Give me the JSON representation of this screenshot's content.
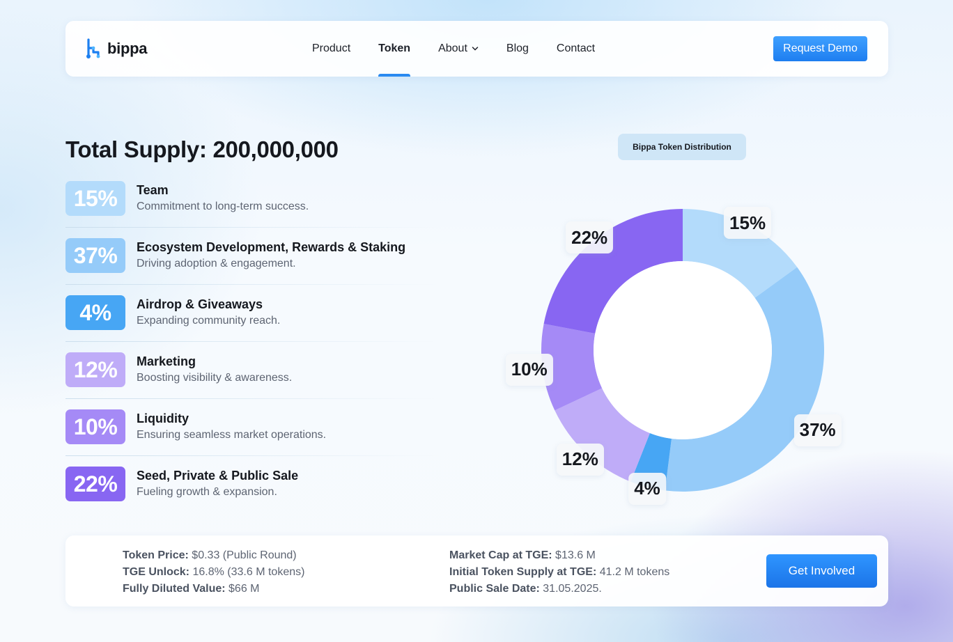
{
  "brand": {
    "name": "bippa"
  },
  "nav": {
    "items": [
      {
        "label": "Product",
        "active": false
      },
      {
        "label": "Token",
        "active": true
      },
      {
        "label": "About",
        "active": false,
        "dropdown": true
      },
      {
        "label": "Blog",
        "active": false
      },
      {
        "label": "Contact",
        "active": false
      }
    ],
    "cta": "Request Demo"
  },
  "supply": {
    "title": "Total Supply: 200,000,000"
  },
  "allocations": [
    {
      "pct": "15%",
      "name": "Team",
      "desc": "Commitment to long-term success.",
      "color": "#b3dbfb"
    },
    {
      "pct": "37%",
      "name": "Ecosystem Development, Rewards & Staking",
      "desc": "Driving adoption & engagement.",
      "color": "#95cbf9"
    },
    {
      "pct": "4%",
      "name": "Airdrop & Giveaways",
      "desc": "Expanding community reach.",
      "color": "#47a6f4"
    },
    {
      "pct": "12%",
      "name": "Marketing",
      "desc": "Boosting visibility & awareness.",
      "color": "#bfacf8"
    },
    {
      "pct": "10%",
      "name": "Liquidity",
      "desc": "Ensuring seamless market operations.",
      "color": "#a58af6"
    },
    {
      "pct": "22%",
      "name": "Seed, Private & Public Sale",
      "desc": "Fueling growth & expansion.",
      "color": "#8866f2"
    }
  ],
  "chart_data": {
    "type": "pie",
    "title": "Bippa Token Distribution",
    "slices": [
      {
        "label": "15%",
        "value": 15,
        "color": "#b3dbfb"
      },
      {
        "label": "37%",
        "value": 37,
        "color": "#95cbf9"
      },
      {
        "label": "4%",
        "value": 4,
        "color": "#47a6f4"
      },
      {
        "label": "12%",
        "value": 12,
        "color": "#bfacf8"
      },
      {
        "label": "10%",
        "value": 10,
        "color": "#a58af6"
      },
      {
        "label": "22%",
        "value": 22,
        "color": "#8866f2"
      }
    ]
  },
  "token_info": {
    "left": [
      {
        "key": "Token Price:",
        "value": "$0.33 (Public Round)"
      },
      {
        "key": "TGE Unlock:",
        "value": "16.8% (33.6 M tokens)"
      },
      {
        "key": "Fully Diluted Value:",
        "value": "$66 M"
      }
    ],
    "right": [
      {
        "key": "Market Cap at TGE:",
        "value": "$13.6 M"
      },
      {
        "key": "Initial Token Supply at TGE:",
        "value": "41.2 M tokens"
      },
      {
        "key": "Public Sale Date:",
        "value": "31.05.2025."
      }
    ],
    "cta": "Get Involved"
  }
}
